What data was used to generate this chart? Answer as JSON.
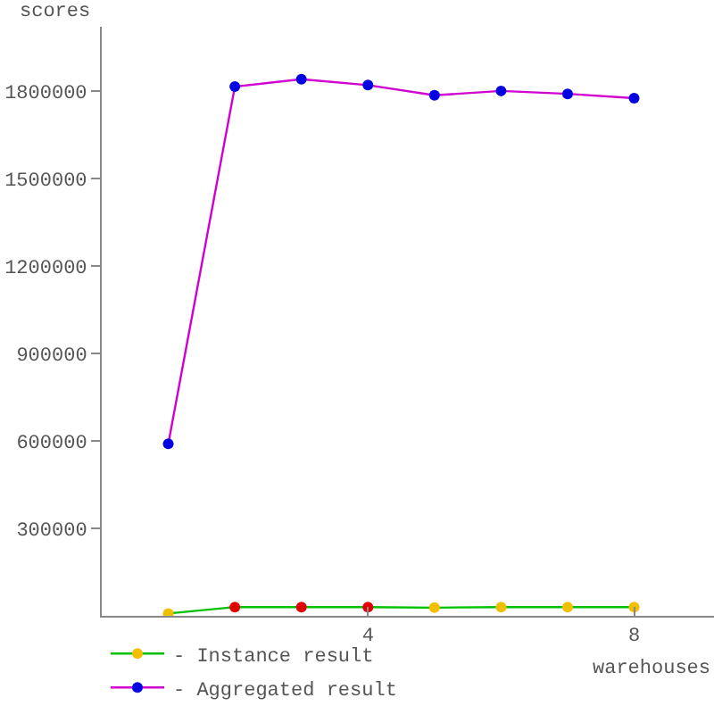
{
  "chart_data": {
    "type": "line",
    "xlabel": "warehouses",
    "ylabel": "scores",
    "x": [
      1,
      2,
      3,
      4,
      5,
      6,
      7,
      8
    ],
    "series": [
      {
        "name": "- Instance result",
        "color": "#00c000",
        "colors": [
          "#f0c000",
          "#e00000",
          "#e00000",
          "#e00000",
          "#f0c000",
          "#f0c000",
          "#f0c000",
          "#f0c000"
        ],
        "values": [
          8000,
          30000,
          30000,
          30000,
          28000,
          30000,
          30000,
          30000
        ]
      },
      {
        "name": "- Aggregated result",
        "color": "#d000d0",
        "colors": [
          "#0000e0",
          "#0000e0",
          "#0000e0",
          "#0000e0",
          "#0000e0",
          "#0000e0",
          "#0000e0",
          "#0000e0"
        ],
        "values": [
          590000,
          1815000,
          1840000,
          1820000,
          1785000,
          1800000,
          1790000,
          1775000
        ]
      }
    ],
    "xlim": [
      0,
      9.2
    ],
    "xticks": [
      4,
      8
    ],
    "ylim": [
      0,
      2020000
    ],
    "yticks": [
      300000,
      600000,
      900000,
      1200000,
      1500000,
      1800000
    ],
    "grid": false,
    "legend": "bottom left",
    "marker": "circle"
  }
}
